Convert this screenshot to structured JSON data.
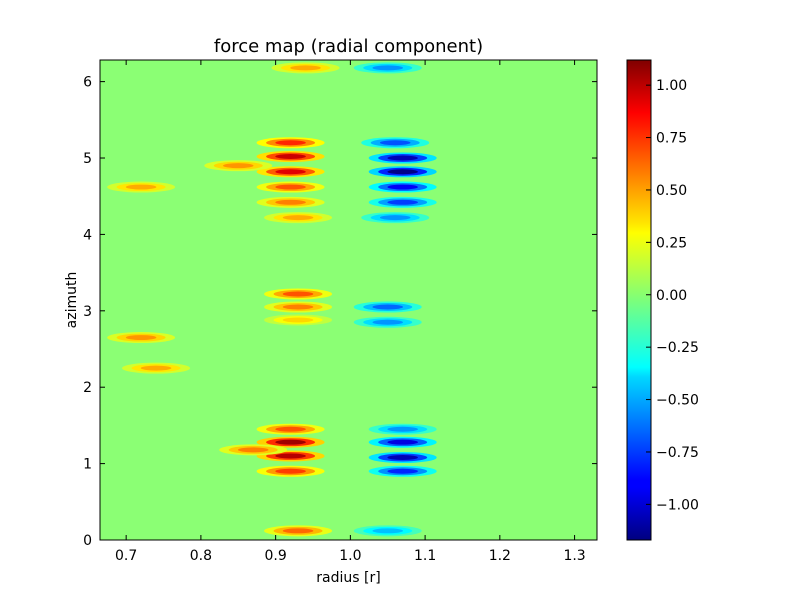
{
  "chart_data": {
    "type": "heatmap",
    "title": "force map (radial component)",
    "xlabel": "radius [r]",
    "ylabel": "azimuth",
    "xlim": [
      0.665,
      1.33
    ],
    "ylim": [
      0,
      6.283
    ],
    "x_ticks": [
      0.7,
      0.8,
      0.9,
      1.0,
      1.1,
      1.2,
      1.3
    ],
    "x_tick_labels": [
      "0.7",
      "0.8",
      "0.9",
      "1.0",
      "1.1",
      "1.2",
      "1.3"
    ],
    "y_ticks": [
      0,
      1,
      2,
      3,
      4,
      5,
      6
    ],
    "y_tick_labels": [
      "0",
      "1",
      "2",
      "3",
      "4",
      "5",
      "6"
    ],
    "colormap": "jet",
    "colorbar": {
      "vmin": -1.17,
      "vmax": 1.12,
      "ticks": [
        -1.0,
        -0.75,
        -0.5,
        -0.25,
        0.0,
        0.25,
        0.5,
        0.75,
        1.0
      ],
      "tick_labels": [
        "−1.00",
        "−0.75",
        "−0.50",
        "−0.25",
        "0.00",
        "0.25",
        "0.50",
        "0.75",
        "1.00"
      ]
    },
    "background_value": 0.0,
    "features": [
      {
        "r": 0.92,
        "phi": 1.28,
        "value": 1.05
      },
      {
        "r": 0.92,
        "phi": 1.1,
        "value": 1.0
      },
      {
        "r": 0.87,
        "phi": 1.18,
        "value": 0.55
      },
      {
        "r": 0.92,
        "phi": 0.9,
        "value": 0.7
      },
      {
        "r": 0.92,
        "phi": 1.45,
        "value": 0.65
      },
      {
        "r": 0.93,
        "phi": 0.12,
        "value": 0.6
      },
      {
        "r": 0.92,
        "phi": 5.02,
        "value": 0.95
      },
      {
        "r": 0.92,
        "phi": 4.82,
        "value": 0.9
      },
      {
        "r": 0.92,
        "phi": 5.2,
        "value": 0.75
      },
      {
        "r": 0.92,
        "phi": 4.62,
        "value": 0.65
      },
      {
        "r": 0.85,
        "phi": 4.9,
        "value": 0.5
      },
      {
        "r": 0.92,
        "phi": 4.42,
        "value": 0.55
      },
      {
        "r": 0.93,
        "phi": 4.22,
        "value": 0.45
      },
      {
        "r": 0.93,
        "phi": 3.22,
        "value": 0.65
      },
      {
        "r": 0.93,
        "phi": 3.05,
        "value": 0.55
      },
      {
        "r": 0.93,
        "phi": 2.88,
        "value": 0.35
      },
      {
        "r": 0.94,
        "phi": 6.18,
        "value": 0.45
      },
      {
        "r": 0.72,
        "phi": 2.65,
        "value": 0.5
      },
      {
        "r": 0.74,
        "phi": 2.25,
        "value": 0.45
      },
      {
        "r": 0.72,
        "phi": 4.62,
        "value": 0.45
      },
      {
        "r": 1.07,
        "phi": 1.28,
        "value": -0.95
      },
      {
        "r": 1.07,
        "phi": 1.08,
        "value": -1.05
      },
      {
        "r": 1.07,
        "phi": 0.9,
        "value": -0.8
      },
      {
        "r": 1.07,
        "phi": 1.45,
        "value": -0.55
      },
      {
        "r": 1.07,
        "phi": 4.82,
        "value": -1.15
      },
      {
        "r": 1.07,
        "phi": 5.0,
        "value": -1.05
      },
      {
        "r": 1.07,
        "phi": 4.62,
        "value": -0.9
      },
      {
        "r": 1.07,
        "phi": 4.42,
        "value": -0.75
      },
      {
        "r": 1.06,
        "phi": 5.2,
        "value": -0.7
      },
      {
        "r": 1.06,
        "phi": 4.22,
        "value": -0.55
      },
      {
        "r": 1.05,
        "phi": 3.05,
        "value": -0.65
      },
      {
        "r": 1.05,
        "phi": 2.85,
        "value": -0.55
      },
      {
        "r": 1.05,
        "phi": 6.18,
        "value": -0.55
      },
      {
        "r": 1.05,
        "phi": 0.12,
        "value": -0.45
      }
    ]
  }
}
